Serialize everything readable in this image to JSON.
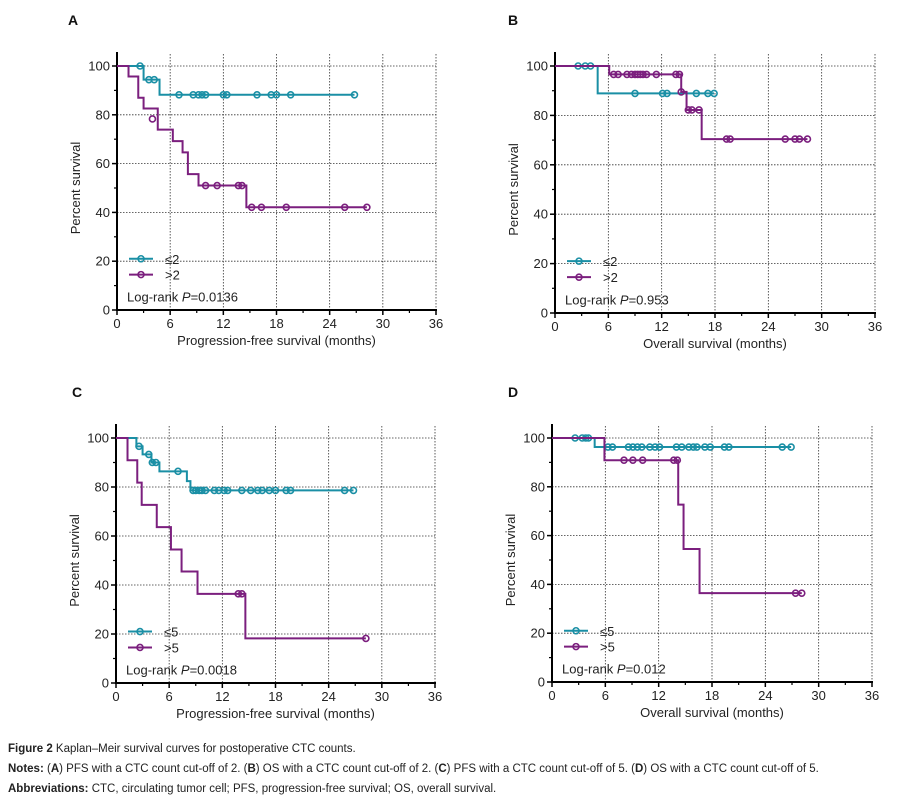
{
  "colors": {
    "group_low": "#1a8fa5",
    "group_high": "#7b1f7e",
    "axis": "#000000",
    "grid": "#333333"
  },
  "chart_data": [
    {
      "type": "line",
      "subtype": "kaplan-meier",
      "panel": "A",
      "title": "",
      "xlabel": "Progression-free survival (months)",
      "ylabel": "Percent survival",
      "xlim": [
        0,
        36
      ],
      "ylim": [
        0,
        100
      ],
      "xticks": [
        "0",
        "6",
        "12",
        "18",
        "24",
        "30",
        "36"
      ],
      "yticks": [
        "0",
        "20",
        "40",
        "60",
        "80",
        "100"
      ],
      "grid": true,
      "legend_position": "bottom-left",
      "annotation": {
        "prefix": "Log-rank ",
        "p": "P",
        "value": "=0.0136"
      },
      "series": [
        {
          "name": "≤2",
          "color_key": "group_low",
          "steps": [
            [
              0,
              100
            ],
            [
              3.0,
              94.4
            ],
            [
              4.8,
              88.2
            ]
          ],
          "end": 26.8,
          "censored": [
            [
              2.6,
              100
            ],
            [
              3.6,
              94.4
            ],
            [
              4.2,
              94.4
            ],
            [
              7.0,
              88.2
            ],
            [
              8.6,
              88.2
            ],
            [
              9.2,
              88.2
            ],
            [
              9.6,
              88.2
            ],
            [
              10.0,
              88.2
            ],
            [
              12.0,
              88.2
            ],
            [
              12.4,
              88.2
            ],
            [
              15.8,
              88.2
            ],
            [
              17.4,
              88.2
            ],
            [
              18.0,
              88.2
            ],
            [
              19.6,
              88.2
            ],
            [
              26.8,
              88.2
            ]
          ]
        },
        {
          "name": ">2",
          "color_key": "group_high",
          "steps": [
            [
              0,
              100
            ],
            [
              1.3,
              95.7
            ],
            [
              2.4,
              87.0
            ],
            [
              3.0,
              82.6
            ],
            [
              4.6,
              73.9
            ],
            [
              6.3,
              69.2
            ],
            [
              7.4,
              64.6
            ],
            [
              8.0,
              55.7
            ],
            [
              9.2,
              51.0
            ],
            [
              14.6,
              42.1
            ]
          ],
          "end": 28.2,
          "censored": [
            [
              4.0,
              78.3
            ],
            [
              10.0,
              51.0
            ],
            [
              11.3,
              51.0
            ],
            [
              13.7,
              51.0
            ],
            [
              14.1,
              51.0
            ],
            [
              15.2,
              42.1
            ],
            [
              16.3,
              42.1
            ],
            [
              19.1,
              42.1
            ],
            [
              25.7,
              42.1
            ],
            [
              28.2,
              42.1
            ]
          ]
        }
      ]
    },
    {
      "type": "line",
      "subtype": "kaplan-meier",
      "panel": "B",
      "title": "",
      "xlabel": "Overall survival (months)",
      "ylabel": "Percent survival",
      "xlim": [
        0,
        36
      ],
      "ylim": [
        0,
        100
      ],
      "xticks": [
        "0",
        "6",
        "12",
        "18",
        "24",
        "30",
        "36"
      ],
      "yticks": [
        "0",
        "20",
        "40",
        "60",
        "80",
        "100"
      ],
      "grid": true,
      "legend_position": "bottom-left",
      "annotation": {
        "prefix": "Log-rank ",
        "p": "P",
        "value": "=0.953"
      },
      "series": [
        {
          "name": "≤2",
          "color_key": "group_low",
          "steps": [
            [
              0,
              100
            ],
            [
              4.8,
              88.9
            ]
          ],
          "end": 17.9,
          "censored": [
            [
              2.6,
              100
            ],
            [
              3.4,
              100
            ],
            [
              4.0,
              100
            ],
            [
              9.0,
              88.9
            ],
            [
              12.1,
              88.9
            ],
            [
              12.6,
              88.9
            ],
            [
              15.9,
              88.9
            ],
            [
              17.2,
              88.9
            ],
            [
              17.9,
              88.9
            ]
          ]
        },
        {
          "name": ">2",
          "color_key": "group_high",
          "steps": [
            [
              0,
              100
            ],
            [
              6.1,
              96.6
            ],
            [
              14.2,
              89.5
            ],
            [
              14.8,
              82.2
            ],
            [
              16.5,
              70.4
            ]
          ],
          "end": 28.4,
          "censored": [
            [
              6.6,
              96.6
            ],
            [
              7.1,
              96.6
            ],
            [
              8.1,
              96.6
            ],
            [
              8.6,
              96.6
            ],
            [
              9.0,
              96.6
            ],
            [
              9.3,
              96.6
            ],
            [
              9.6,
              96.6
            ],
            [
              9.9,
              96.6
            ],
            [
              10.3,
              96.6
            ],
            [
              11.4,
              96.6
            ],
            [
              13.6,
              96.6
            ],
            [
              14.0,
              96.6
            ],
            [
              14.2,
              89.5
            ],
            [
              15.0,
              82.2
            ],
            [
              15.4,
              82.2
            ],
            [
              16.2,
              82.2
            ],
            [
              19.3,
              70.4
            ],
            [
              19.7,
              70.4
            ],
            [
              25.9,
              70.4
            ],
            [
              27.0,
              70.4
            ],
            [
              27.5,
              70.4
            ],
            [
              28.4,
              70.4
            ]
          ]
        }
      ]
    },
    {
      "type": "line",
      "subtype": "kaplan-meier",
      "panel": "C",
      "title": "",
      "xlabel": "Progression-free survival (months)",
      "ylabel": "Percent survival",
      "xlim": [
        0,
        36
      ],
      "ylim": [
        0,
        100
      ],
      "xticks": [
        "0",
        "6",
        "12",
        "18",
        "24",
        "30",
        "36"
      ],
      "yticks": [
        "0",
        "20",
        "40",
        "60",
        "80",
        "100"
      ],
      "grid": true,
      "legend_position": "bottom-left",
      "annotation": {
        "prefix": "Log-rank ",
        "p": "P",
        "value": "=0.0018"
      },
      "series": [
        {
          "name": "≤5",
          "color_key": "group_low",
          "steps": [
            [
              0,
              100
            ],
            [
              2.3,
              96.6
            ],
            [
              3.0,
              93.3
            ],
            [
              4.0,
              90.0
            ],
            [
              4.9,
              86.4
            ],
            [
              8.0,
              82.4
            ],
            [
              8.4,
              78.6
            ]
          ],
          "end": 26.8,
          "censored": [
            [
              2.6,
              96.6
            ],
            [
              3.7,
              93.3
            ],
            [
              4.1,
              90.0
            ],
            [
              4.5,
              90.0
            ],
            [
              7.0,
              86.4
            ],
            [
              8.7,
              78.6
            ],
            [
              9.0,
              78.6
            ],
            [
              9.4,
              78.6
            ],
            [
              9.7,
              78.6
            ],
            [
              10.1,
              78.6
            ],
            [
              11.1,
              78.6
            ],
            [
              11.6,
              78.6
            ],
            [
              12.2,
              78.6
            ],
            [
              12.6,
              78.6
            ],
            [
              14.2,
              78.6
            ],
            [
              15.2,
              78.6
            ],
            [
              16.0,
              78.6
            ],
            [
              16.5,
              78.6
            ],
            [
              17.3,
              78.6
            ],
            [
              18.0,
              78.6
            ],
            [
              19.2,
              78.6
            ],
            [
              19.7,
              78.6
            ],
            [
              25.8,
              78.6
            ],
            [
              26.8,
              78.6
            ]
          ]
        },
        {
          "name": ">5",
          "color_key": "group_high",
          "steps": [
            [
              0,
              100
            ],
            [
              1.3,
              90.9
            ],
            [
              2.4,
              81.8
            ],
            [
              2.9,
              72.7
            ],
            [
              4.6,
              63.6
            ],
            [
              6.2,
              54.5
            ],
            [
              7.4,
              45.5
            ],
            [
              9.2,
              36.4
            ],
            [
              14.6,
              18.2
            ]
          ],
          "end": 28.2,
          "censored": [
            [
              13.8,
              36.4
            ],
            [
              14.2,
              36.4
            ],
            [
              28.2,
              18.2
            ]
          ]
        }
      ]
    },
    {
      "type": "line",
      "subtype": "kaplan-meier",
      "panel": "D",
      "title": "",
      "xlabel": "Overall survival (months)",
      "ylabel": "Percent survival",
      "xlim": [
        0,
        36
      ],
      "ylim": [
        0,
        100
      ],
      "xticks": [
        "0",
        "6",
        "12",
        "18",
        "24",
        "30",
        "36"
      ],
      "yticks": [
        "0",
        "20",
        "40",
        "60",
        "80",
        "100"
      ],
      "grid": true,
      "legend_position": "bottom-left",
      "annotation": {
        "prefix": "Log-rank ",
        "p": "P",
        "value": "=0.012"
      },
      "series": [
        {
          "name": "≤5",
          "color_key": "group_low",
          "steps": [
            [
              0,
              100
            ],
            [
              4.8,
              96.3
            ]
          ],
          "end": 26.9,
          "censored": [
            [
              2.6,
              100
            ],
            [
              3.4,
              100
            ],
            [
              3.8,
              100
            ],
            [
              4.1,
              100
            ],
            [
              6.3,
              96.3
            ],
            [
              6.8,
              96.3
            ],
            [
              8.6,
              96.3
            ],
            [
              9.1,
              96.3
            ],
            [
              9.6,
              96.3
            ],
            [
              10.1,
              96.3
            ],
            [
              11.0,
              96.3
            ],
            [
              11.6,
              96.3
            ],
            [
              12.1,
              96.3
            ],
            [
              14.0,
              96.3
            ],
            [
              14.6,
              96.3
            ],
            [
              15.4,
              96.3
            ],
            [
              15.9,
              96.3
            ],
            [
              16.3,
              96.3
            ],
            [
              17.2,
              96.3
            ],
            [
              17.8,
              96.3
            ],
            [
              19.4,
              96.3
            ],
            [
              19.9,
              96.3
            ],
            [
              25.9,
              96.3
            ],
            [
              26.9,
              96.3
            ]
          ]
        },
        {
          "name": ">5",
          "color_key": "group_high",
          "steps": [
            [
              0,
              100
            ],
            [
              5.9,
              90.9
            ],
            [
              14.2,
              72.7
            ],
            [
              14.8,
              54.5
            ],
            [
              16.6,
              36.4
            ]
          ],
          "end": 28.1,
          "censored": [
            [
              8.1,
              90.9
            ],
            [
              9.1,
              90.9
            ],
            [
              10.2,
              90.9
            ],
            [
              13.7,
              90.9
            ],
            [
              14.1,
              90.9
            ],
            [
              27.4,
              36.4
            ],
            [
              28.1,
              36.4
            ]
          ]
        }
      ]
    }
  ],
  "caption": {
    "figure_label": "Figure 2",
    "figure_title": " Kaplan–Meir survival curves for postoperative CTC counts.",
    "notes_label": "Notes:",
    "notes_parts": [
      " (",
      "A",
      ") PFS with a CTC count cut-off of 2. (",
      "B",
      ") OS with a CTC count cut-off of 2. (",
      "C",
      ") PFS with a CTC count cut-off of 5. (",
      "D",
      ") OS with a CTC count cut-off of 5."
    ],
    "abbrev_label": "Abbreviations:",
    "abbrev_text": " CTC, circulating tumor cell; PFS, progression-free survival; OS, overall survival."
  }
}
